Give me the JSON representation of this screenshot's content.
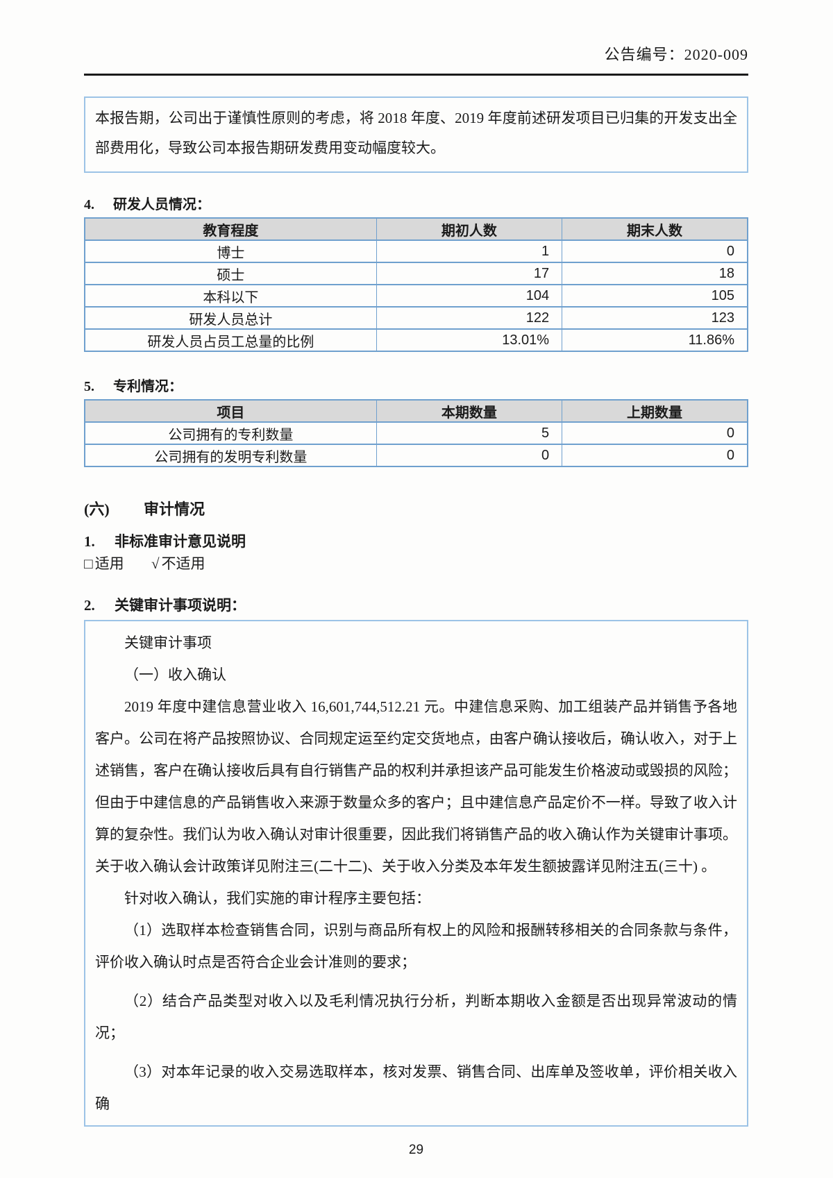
{
  "header": {
    "doc_code": "公告编号：2020-009"
  },
  "note_box": {
    "text": "本报告期，公司出于谨慎性原则的考虑，将 2018 年度、2019 年度前述研发项目已归集的开发支出全部费用化，导致公司本报告期研发费用变动幅度较大。"
  },
  "rd_personnel": {
    "number": "4.",
    "title": "研发人员情况：",
    "table": {
      "headers": [
        "教育程度",
        "期初人数",
        "期末人数"
      ],
      "rows": [
        [
          "博士",
          "1",
          "0"
        ],
        [
          "硕士",
          "17",
          "18"
        ],
        [
          "本科以下",
          "104",
          "105"
        ],
        [
          "研发人员总计",
          "122",
          "123"
        ],
        [
          "研发人员占员工总量的比例",
          "13.01%",
          "11.86%"
        ]
      ]
    }
  },
  "patents": {
    "number": "5.",
    "title": "专利情况：",
    "table": {
      "headers": [
        "项目",
        "本期数量",
        "上期数量"
      ],
      "rows": [
        [
          "公司拥有的专利数量",
          "5",
          "0"
        ],
        [
          "公司拥有的发明专利数量",
          "0",
          "0"
        ]
      ]
    }
  },
  "audit_section": {
    "number": "(六)",
    "title": "审计情况",
    "sub1": {
      "number": "1.",
      "title": "非标准审计意见说明"
    },
    "applicability": {
      "empty_checkbox_glyph": "□",
      "applicable_label": "适用",
      "check_glyph": "√",
      "not_applicable_label": "不适用"
    },
    "sub2": {
      "number": "2.",
      "title": "关键审计事项说明："
    },
    "key_audit_matters": {
      "paragraphs": [
        "关键审计事项",
        "（一）收入确认",
        "2019 年度中建信息营业收入 16,601,744,512.21 元。中建信息采购、加工组装产品并销售予各地客户。公司在将产品按照协议、合同规定运至约定交货地点，由客户确认接收后，确认收入，对于上述销售，客户在确认接收后具有自行销售产品的权利并承担该产品可能发生价格波动或毁损的风险；但由于中建信息的产品销售收入来源于数量众多的客户；且中建信息产品定价不一样。导致了收入计算的复杂性。我们认为收入确认对审计很重要，因此我们将销售产品的收入确认作为关键审计事项。关于收入确认会计政策详见附注三(二十二)、关于收入分类及本年发生额披露详见附注五(三十) 。",
        "针对收入确认，我们实施的审计程序主要包括：",
        "（1）选取样本检查销售合同，识别与商品所有权上的风险和报酬转移相关的合同条款与条件，评价收入确认时点是否符合企业会计准则的要求；",
        "（2）结合产品类型对收入以及毛利情况执行分析，判断本期收入金额是否出现异常波动的情况；",
        "（3）对本年记录的收入交易选取样本，核对发票、销售合同、出库单及签收单，评价相关收入确"
      ]
    }
  },
  "footer": {
    "page_number": "29"
  }
}
